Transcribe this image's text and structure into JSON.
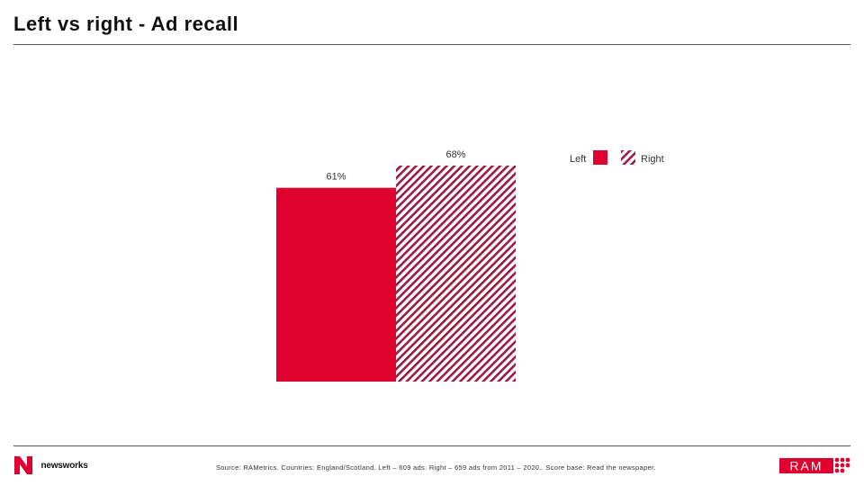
{
  "page": {
    "title": "Left vs right - Ad recall",
    "source": "Source: RAMetrics. Countries: England/Scotland. Left – 609 ads. Right – 659 ads from 2011 – 2020.. Score base: Read the newspaper.",
    "brand_left": "newsworks",
    "brand_right": "RAM"
  },
  "colors": {
    "left": "#e0002f",
    "right_stripe": "#9b1b43"
  },
  "chart_data": {
    "type": "bar",
    "categories": [
      ""
    ],
    "series": [
      {
        "name": "Left",
        "values": [
          61
        ],
        "label": "61%",
        "color": "#e0002f",
        "pattern": "solid"
      },
      {
        "name": "Right",
        "values": [
          68
        ],
        "label": "68%",
        "color": "#9b1b43",
        "pattern": "diagonal-stripes"
      }
    ],
    "title": "",
    "xlabel": "",
    "ylabel": "",
    "ylim": [
      0,
      100
    ],
    "grid": false,
    "legend": {
      "placement": "right",
      "entries": [
        "Left",
        "Right"
      ]
    }
  }
}
